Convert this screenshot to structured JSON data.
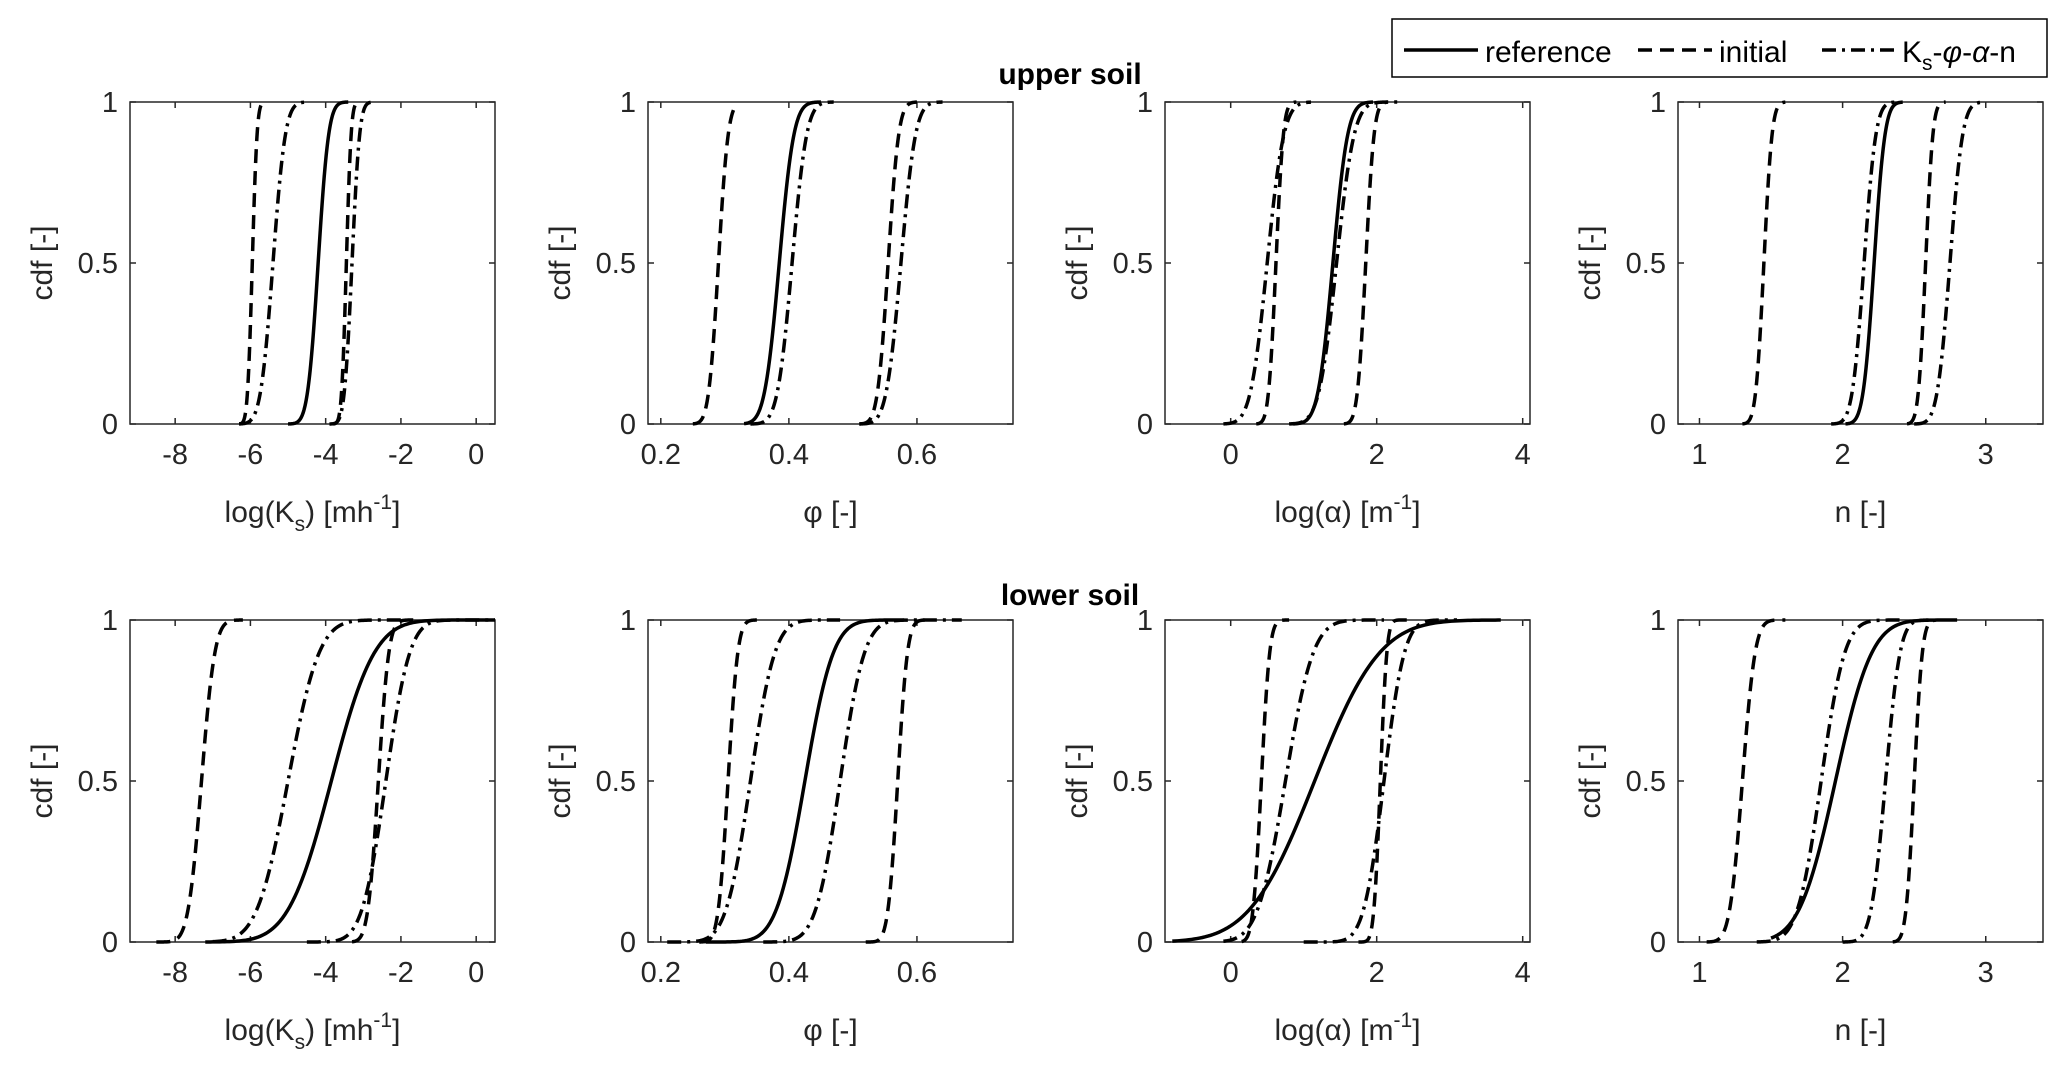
{
  "figure": {
    "row_titles": [
      "upper soil",
      "lower soil"
    ],
    "legend": {
      "placement": "top-right",
      "entries": [
        {
          "name": "reference",
          "style": "solid"
        },
        {
          "name": "initial",
          "style": "dashed"
        },
        {
          "name_parts": [
            "K",
            "s",
            "-",
            "φ",
            "-",
            "α",
            "-n"
          ],
          "style": "dashdot"
        }
      ]
    },
    "line_color": "#000000"
  },
  "chart_data": [
    {
      "type": "line",
      "row": "upper soil",
      "col": 0,
      "xlabel": {
        "main": "log(K",
        "sub": "s",
        "after": ") [mh",
        "sup": "-1",
        "end": "]"
      },
      "ylabel": "cdf [-]",
      "xlim": [
        -9.2,
        0.5
      ],
      "ylim": [
        0,
        1
      ],
      "xticks": [
        -8,
        -6,
        -4,
        -2,
        0
      ],
      "yticks": [
        0,
        0.5,
        1
      ],
      "ytick_labels": [
        "0",
        "0.5",
        "1"
      ],
      "series": [
        {
          "name": "reference",
          "style": "solid",
          "mu": -4.2,
          "sd": 0.22,
          "range": [
            -5.0,
            -3.4
          ]
        },
        {
          "name": "initial",
          "style": "dashed",
          "mu": -5.95,
          "sd": 0.1,
          "range": [
            -6.3,
            -5.6
          ]
        },
        {
          "name": "initial",
          "style": "dashed",
          "mu": -3.45,
          "sd": 0.1,
          "range": [
            -3.8,
            -3.1
          ]
        },
        {
          "name": "Ks-φ-α-n",
          "style": "dashdot",
          "mu": -5.4,
          "sd": 0.26,
          "range": [
            -6.3,
            -4.5
          ]
        },
        {
          "name": "Ks-φ-α-n",
          "style": "dashdot",
          "mu": -3.3,
          "sd": 0.16,
          "range": [
            -3.9,
            -2.7
          ]
        }
      ]
    },
    {
      "type": "line",
      "row": "upper soil",
      "col": 1,
      "xlabel": {
        "main": "φ [-]"
      },
      "ylabel": "cdf [-]",
      "xlim": [
        0.18,
        0.75
      ],
      "ylim": [
        0,
        1
      ],
      "xticks": [
        0.2,
        0.4,
        0.6
      ],
      "yticks": [
        0,
        0.5,
        1
      ],
      "ytick_labels": [
        "0",
        "0.5",
        "1"
      ],
      "series": [
        {
          "name": "reference",
          "style": "solid",
          "mu": 0.385,
          "sd": 0.018,
          "range": [
            0.33,
            0.45
          ]
        },
        {
          "name": "initial",
          "style": "dashed",
          "mu": 0.29,
          "sd": 0.012,
          "range": [
            0.25,
            0.32
          ]
        },
        {
          "name": "initial",
          "style": "dashed",
          "mu": 0.555,
          "sd": 0.013,
          "range": [
            0.51,
            0.6
          ]
        },
        {
          "name": "Ks-φ-α-n",
          "style": "dashdot",
          "mu": 0.405,
          "sd": 0.018,
          "range": [
            0.34,
            0.47
          ]
        },
        {
          "name": "Ks-φ-α-n",
          "style": "dashdot",
          "mu": 0.575,
          "sd": 0.018,
          "range": [
            0.51,
            0.64
          ]
        }
      ]
    },
    {
      "type": "line",
      "row": "upper soil",
      "col": 2,
      "xlabel": {
        "main": "log(α) [m",
        "sup": "-1",
        "end": "]"
      },
      "ylabel": "cdf [-]",
      "xlim": [
        -0.9,
        4.1
      ],
      "ylim": [
        0,
        1
      ],
      "xticks": [
        0,
        2,
        4
      ],
      "yticks": [
        0,
        0.5,
        1
      ],
      "ytick_labels": [
        "0",
        "0.5",
        "1"
      ],
      "series": [
        {
          "name": "reference",
          "style": "solid",
          "mu": 1.4,
          "sd": 0.16,
          "range": [
            0.85,
            1.95
          ]
        },
        {
          "name": "initial",
          "style": "dashed",
          "mu": 0.62,
          "sd": 0.08,
          "range": [
            0.35,
            0.9
          ]
        },
        {
          "name": "initial",
          "style": "dashed",
          "mu": 1.85,
          "sd": 0.09,
          "range": [
            1.55,
            2.15
          ]
        },
        {
          "name": "Ks-φ-α-n",
          "style": "dashdot",
          "mu": 0.5,
          "sd": 0.18,
          "range": [
            -0.1,
            1.1
          ]
        },
        {
          "name": "Ks-φ-α-n",
          "style": "dashdot",
          "mu": 1.45,
          "sd": 0.19,
          "range": [
            0.8,
            2.35
          ]
        }
      ]
    },
    {
      "type": "line",
      "row": "upper soil",
      "col": 3,
      "xlabel": {
        "main": "n [-]"
      },
      "ylabel": "cdf [-]",
      "xlim": [
        0.85,
        3.4
      ],
      "ylim": [
        0,
        1
      ],
      "xticks": [
        1,
        2,
        3
      ],
      "yticks": [
        0,
        0.5,
        1
      ],
      "ytick_labels": [
        "0",
        "0.5",
        "1"
      ],
      "series": [
        {
          "name": "reference",
          "style": "solid",
          "mu": 2.22,
          "sd": 0.06,
          "range": [
            2.02,
            2.42
          ]
        },
        {
          "name": "initial",
          "style": "dashed",
          "mu": 1.45,
          "sd": 0.045,
          "range": [
            1.3,
            1.6
          ]
        },
        {
          "name": "initial",
          "style": "dashed",
          "mu": 2.58,
          "sd": 0.04,
          "range": [
            2.45,
            2.72
          ]
        },
        {
          "name": "Ks-φ-α-n",
          "style": "dashdot",
          "mu": 2.15,
          "sd": 0.065,
          "range": [
            1.92,
            2.38
          ]
        },
        {
          "name": "Ks-φ-α-n",
          "style": "dashdot",
          "mu": 2.75,
          "sd": 0.07,
          "range": [
            2.5,
            2.98
          ]
        }
      ]
    },
    {
      "type": "line",
      "row": "lower soil",
      "col": 0,
      "xlabel": {
        "main": "log(K",
        "sub": "s",
        "after": ") [mh",
        "sup": "-1",
        "end": "]"
      },
      "ylabel": "cdf [-]",
      "xlim": [
        -9.2,
        0.5
      ],
      "ylim": [
        0,
        1
      ],
      "xticks": [
        -8,
        -6,
        -4,
        -2,
        0
      ],
      "yticks": [
        0,
        0.5,
        1
      ],
      "ytick_labels": [
        "0",
        "0.5",
        "1"
      ],
      "series": [
        {
          "name": "reference",
          "style": "solid",
          "mu": -3.85,
          "sd": 0.9,
          "range": [
            -7.2,
            0.5
          ]
        },
        {
          "name": "initial",
          "style": "dashed",
          "mu": -7.3,
          "sd": 0.28,
          "range": [
            -8.5,
            -6.2
          ]
        },
        {
          "name": "initial",
          "style": "dashed",
          "mu": -2.6,
          "sd": 0.22,
          "range": [
            -3.3,
            -1.5
          ]
        },
        {
          "name": "Ks-φ-α-n",
          "style": "dashdot",
          "mu": -5.0,
          "sd": 0.65,
          "range": [
            -7.0,
            -2.0
          ]
        },
        {
          "name": "Ks-φ-α-n",
          "style": "dashdot",
          "mu": -2.4,
          "sd": 0.5,
          "range": [
            -4.5,
            0.5
          ]
        }
      ]
    },
    {
      "type": "line",
      "row": "lower soil",
      "col": 1,
      "xlabel": {
        "main": "φ [-]"
      },
      "ylabel": "cdf [-]",
      "xlim": [
        0.18,
        0.75
      ],
      "ylim": [
        0,
        1
      ],
      "xticks": [
        0.2,
        0.4,
        0.6
      ],
      "yticks": [
        0,
        0.5,
        1
      ],
      "ytick_labels": [
        "0",
        "0.5",
        "1"
      ],
      "series": [
        {
          "name": "reference",
          "style": "solid",
          "mu": 0.425,
          "sd": 0.035,
          "range": [
            0.27,
            0.58
          ]
        },
        {
          "name": "initial",
          "style": "dashed",
          "mu": 0.305,
          "sd": 0.012,
          "range": [
            0.26,
            0.35
          ]
        },
        {
          "name": "initial",
          "style": "dashed",
          "mu": 0.57,
          "sd": 0.012,
          "range": [
            0.52,
            0.62
          ]
        },
        {
          "name": "Ks-φ-α-n",
          "style": "dashdot",
          "mu": 0.34,
          "sd": 0.03,
          "range": [
            0.21,
            0.48
          ]
        },
        {
          "name": "Ks-φ-α-n",
          "style": "dashdot",
          "mu": 0.48,
          "sd": 0.03,
          "range": [
            0.36,
            0.67
          ]
        }
      ]
    },
    {
      "type": "line",
      "row": "lower soil",
      "col": 2,
      "xlabel": {
        "main": "log(α) [m",
        "sup": "-1",
        "end": "]"
      },
      "ylabel": "cdf [-]",
      "xlim": [
        -0.9,
        4.1
      ],
      "ylim": [
        0,
        1
      ],
      "xticks": [
        0,
        2,
        4
      ],
      "yticks": [
        0,
        0.5,
        1
      ],
      "ytick_labels": [
        "0",
        "0.5",
        "1"
      ],
      "series": [
        {
          "name": "reference",
          "style": "solid",
          "mu": 1.15,
          "sd": 0.7,
          "range": [
            -0.8,
            3.7
          ]
        },
        {
          "name": "initial",
          "style": "dashed",
          "mu": 0.42,
          "sd": 0.09,
          "range": [
            0.15,
            0.8
          ]
        },
        {
          "name": "initial",
          "style": "dashed",
          "mu": 2.05,
          "sd": 0.07,
          "range": [
            1.75,
            2.5
          ]
        },
        {
          "name": "Ks-φ-α-n",
          "style": "dashdot",
          "mu": 0.75,
          "sd": 0.3,
          "range": [
            -0.1,
            2.1
          ]
        },
        {
          "name": "Ks-φ-α-n",
          "style": "dashdot",
          "mu": 2.1,
          "sd": 0.22,
          "range": [
            1.0,
            3.1
          ]
        }
      ]
    },
    {
      "type": "line",
      "row": "lower soil",
      "col": 3,
      "xlabel": {
        "main": "n [-]"
      },
      "ylabel": "cdf [-]",
      "xlim": [
        0.85,
        3.4
      ],
      "ylim": [
        0,
        1
      ],
      "xticks": [
        1,
        2,
        3
      ],
      "yticks": [
        0,
        0.5,
        1
      ],
      "ytick_labels": [
        "0",
        "0.5",
        "1"
      ],
      "series": [
        {
          "name": "reference",
          "style": "solid",
          "mu": 1.95,
          "sd": 0.2,
          "range": [
            1.5,
            2.8
          ]
        },
        {
          "name": "initial",
          "style": "dashed",
          "mu": 1.3,
          "sd": 0.07,
          "range": [
            1.05,
            1.6
          ]
        },
        {
          "name": "initial",
          "style": "dashed",
          "mu": 2.5,
          "sd": 0.045,
          "range": [
            2.35,
            2.65
          ]
        },
        {
          "name": "Ks-φ-α-n",
          "style": "dashdot",
          "mu": 1.85,
          "sd": 0.13,
          "range": [
            1.4,
            2.4
          ]
        },
        {
          "name": "Ks-φ-α-n",
          "style": "dashdot",
          "mu": 2.3,
          "sd": 0.08,
          "range": [
            2.0,
            2.6
          ]
        }
      ]
    }
  ]
}
